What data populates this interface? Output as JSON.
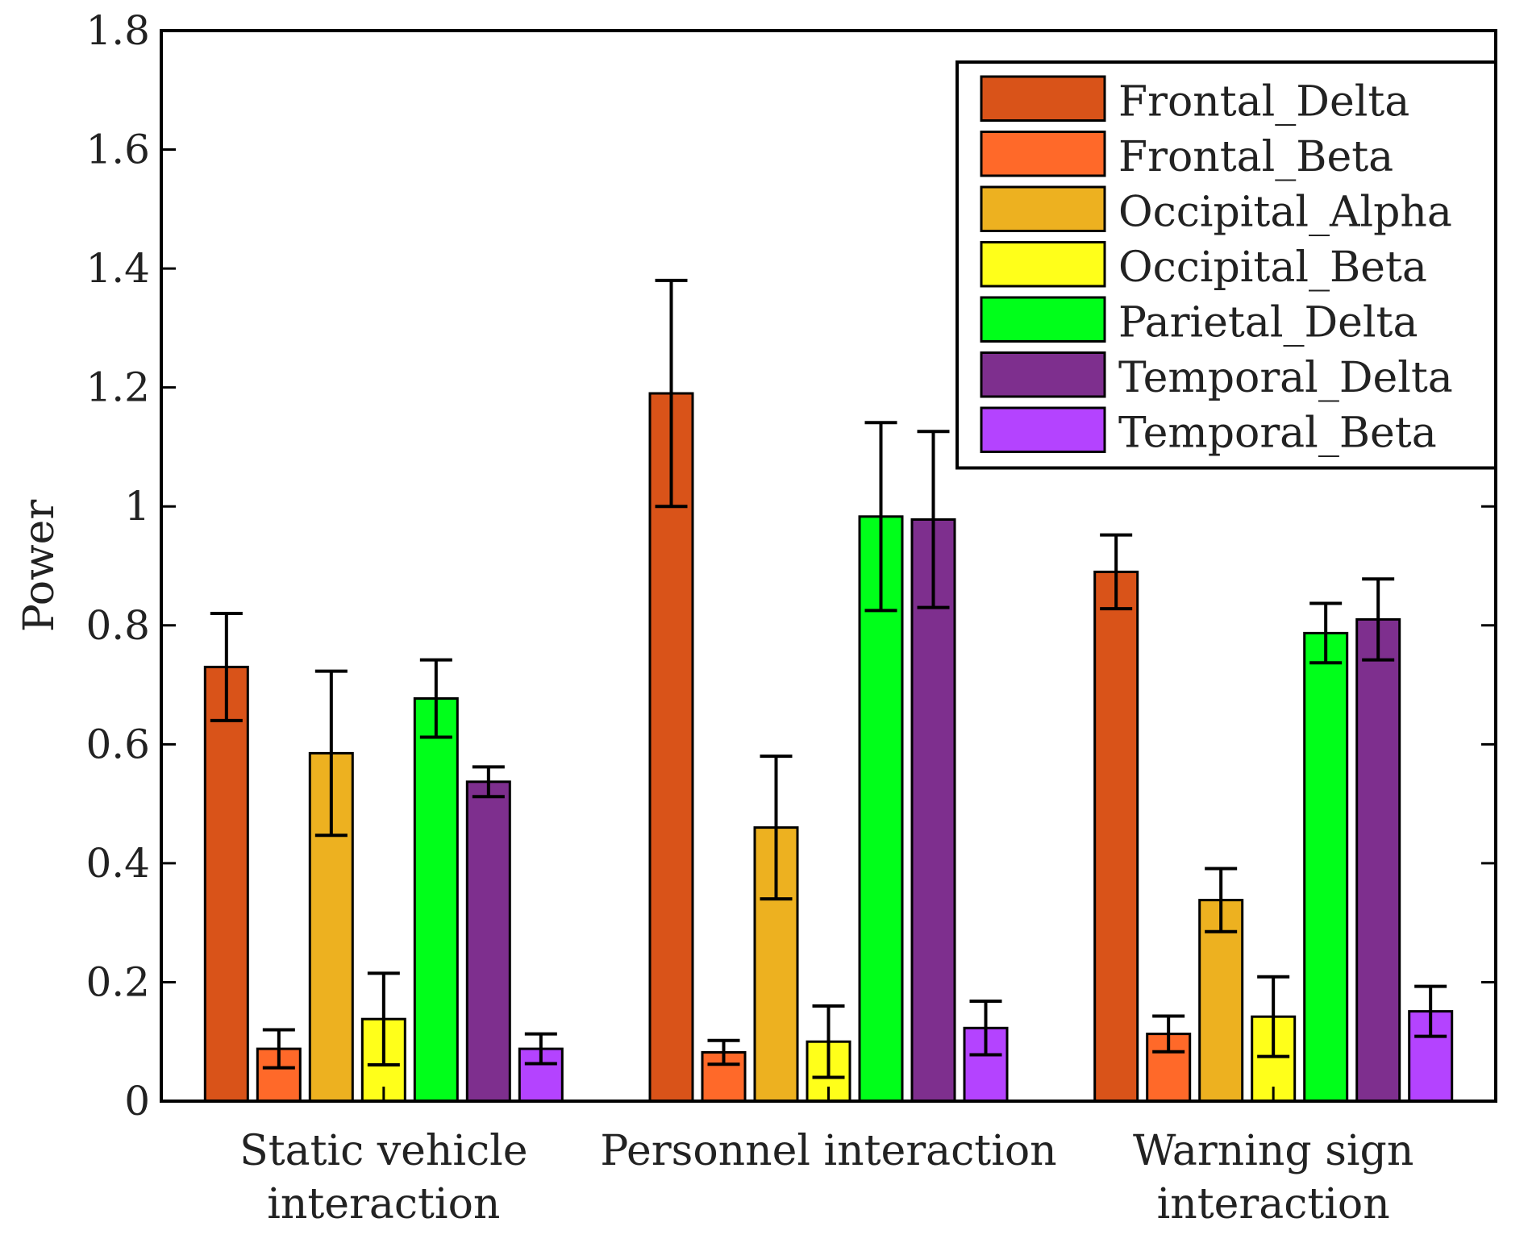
{
  "chart_data": {
    "type": "bar",
    "title": "",
    "xlabel": "",
    "ylabel": "Power",
    "ylim": [
      0,
      1.8
    ],
    "yticks": [
      "0",
      "0.2",
      "0.4",
      "0.6",
      "0.8",
      "1",
      "1.2",
      "1.4",
      "1.6",
      "1.8"
    ],
    "categories": [
      [
        "Static vehicle",
        "interaction"
      ],
      [
        "Personnel interaction"
      ],
      [
        "Warning sign",
        "interaction"
      ]
    ],
    "legend_position": "top-right",
    "series": [
      {
        "name": "Frontal_Delta",
        "color": "#d95319",
        "values": [
          0.73,
          1.19,
          0.89
        ],
        "errors": [
          0.09,
          0.19,
          0.062
        ]
      },
      {
        "name": "Frontal_Beta",
        "color": "#ff6929",
        "values": [
          0.088,
          0.082,
          0.113
        ],
        "errors": [
          0.032,
          0.02,
          0.03
        ]
      },
      {
        "name": "Occipital_Alpha",
        "color": "#edb120",
        "values": [
          0.585,
          0.46,
          0.338
        ],
        "errors": [
          0.138,
          0.12,
          0.053
        ]
      },
      {
        "name": "Occipital_Beta",
        "color": "#ffff1a",
        "values": [
          0.138,
          0.1,
          0.142
        ],
        "errors": [
          0.077,
          0.06,
          0.067
        ]
      },
      {
        "name": "Parietal_Delta",
        "color": "#00ff1a",
        "values": [
          0.677,
          0.983,
          0.787
        ],
        "errors": [
          0.065,
          0.158,
          0.05
        ]
      },
      {
        "name": "Temporal_Delta",
        "color": "#7e2f8e",
        "values": [
          0.537,
          0.978,
          0.81
        ],
        "errors": [
          0.025,
          0.148,
          0.068
        ]
      },
      {
        "name": "Temporal_Beta",
        "color": "#b443ff",
        "values": [
          0.088,
          0.123,
          0.151
        ],
        "errors": [
          0.025,
          0.045,
          0.042
        ]
      }
    ]
  }
}
